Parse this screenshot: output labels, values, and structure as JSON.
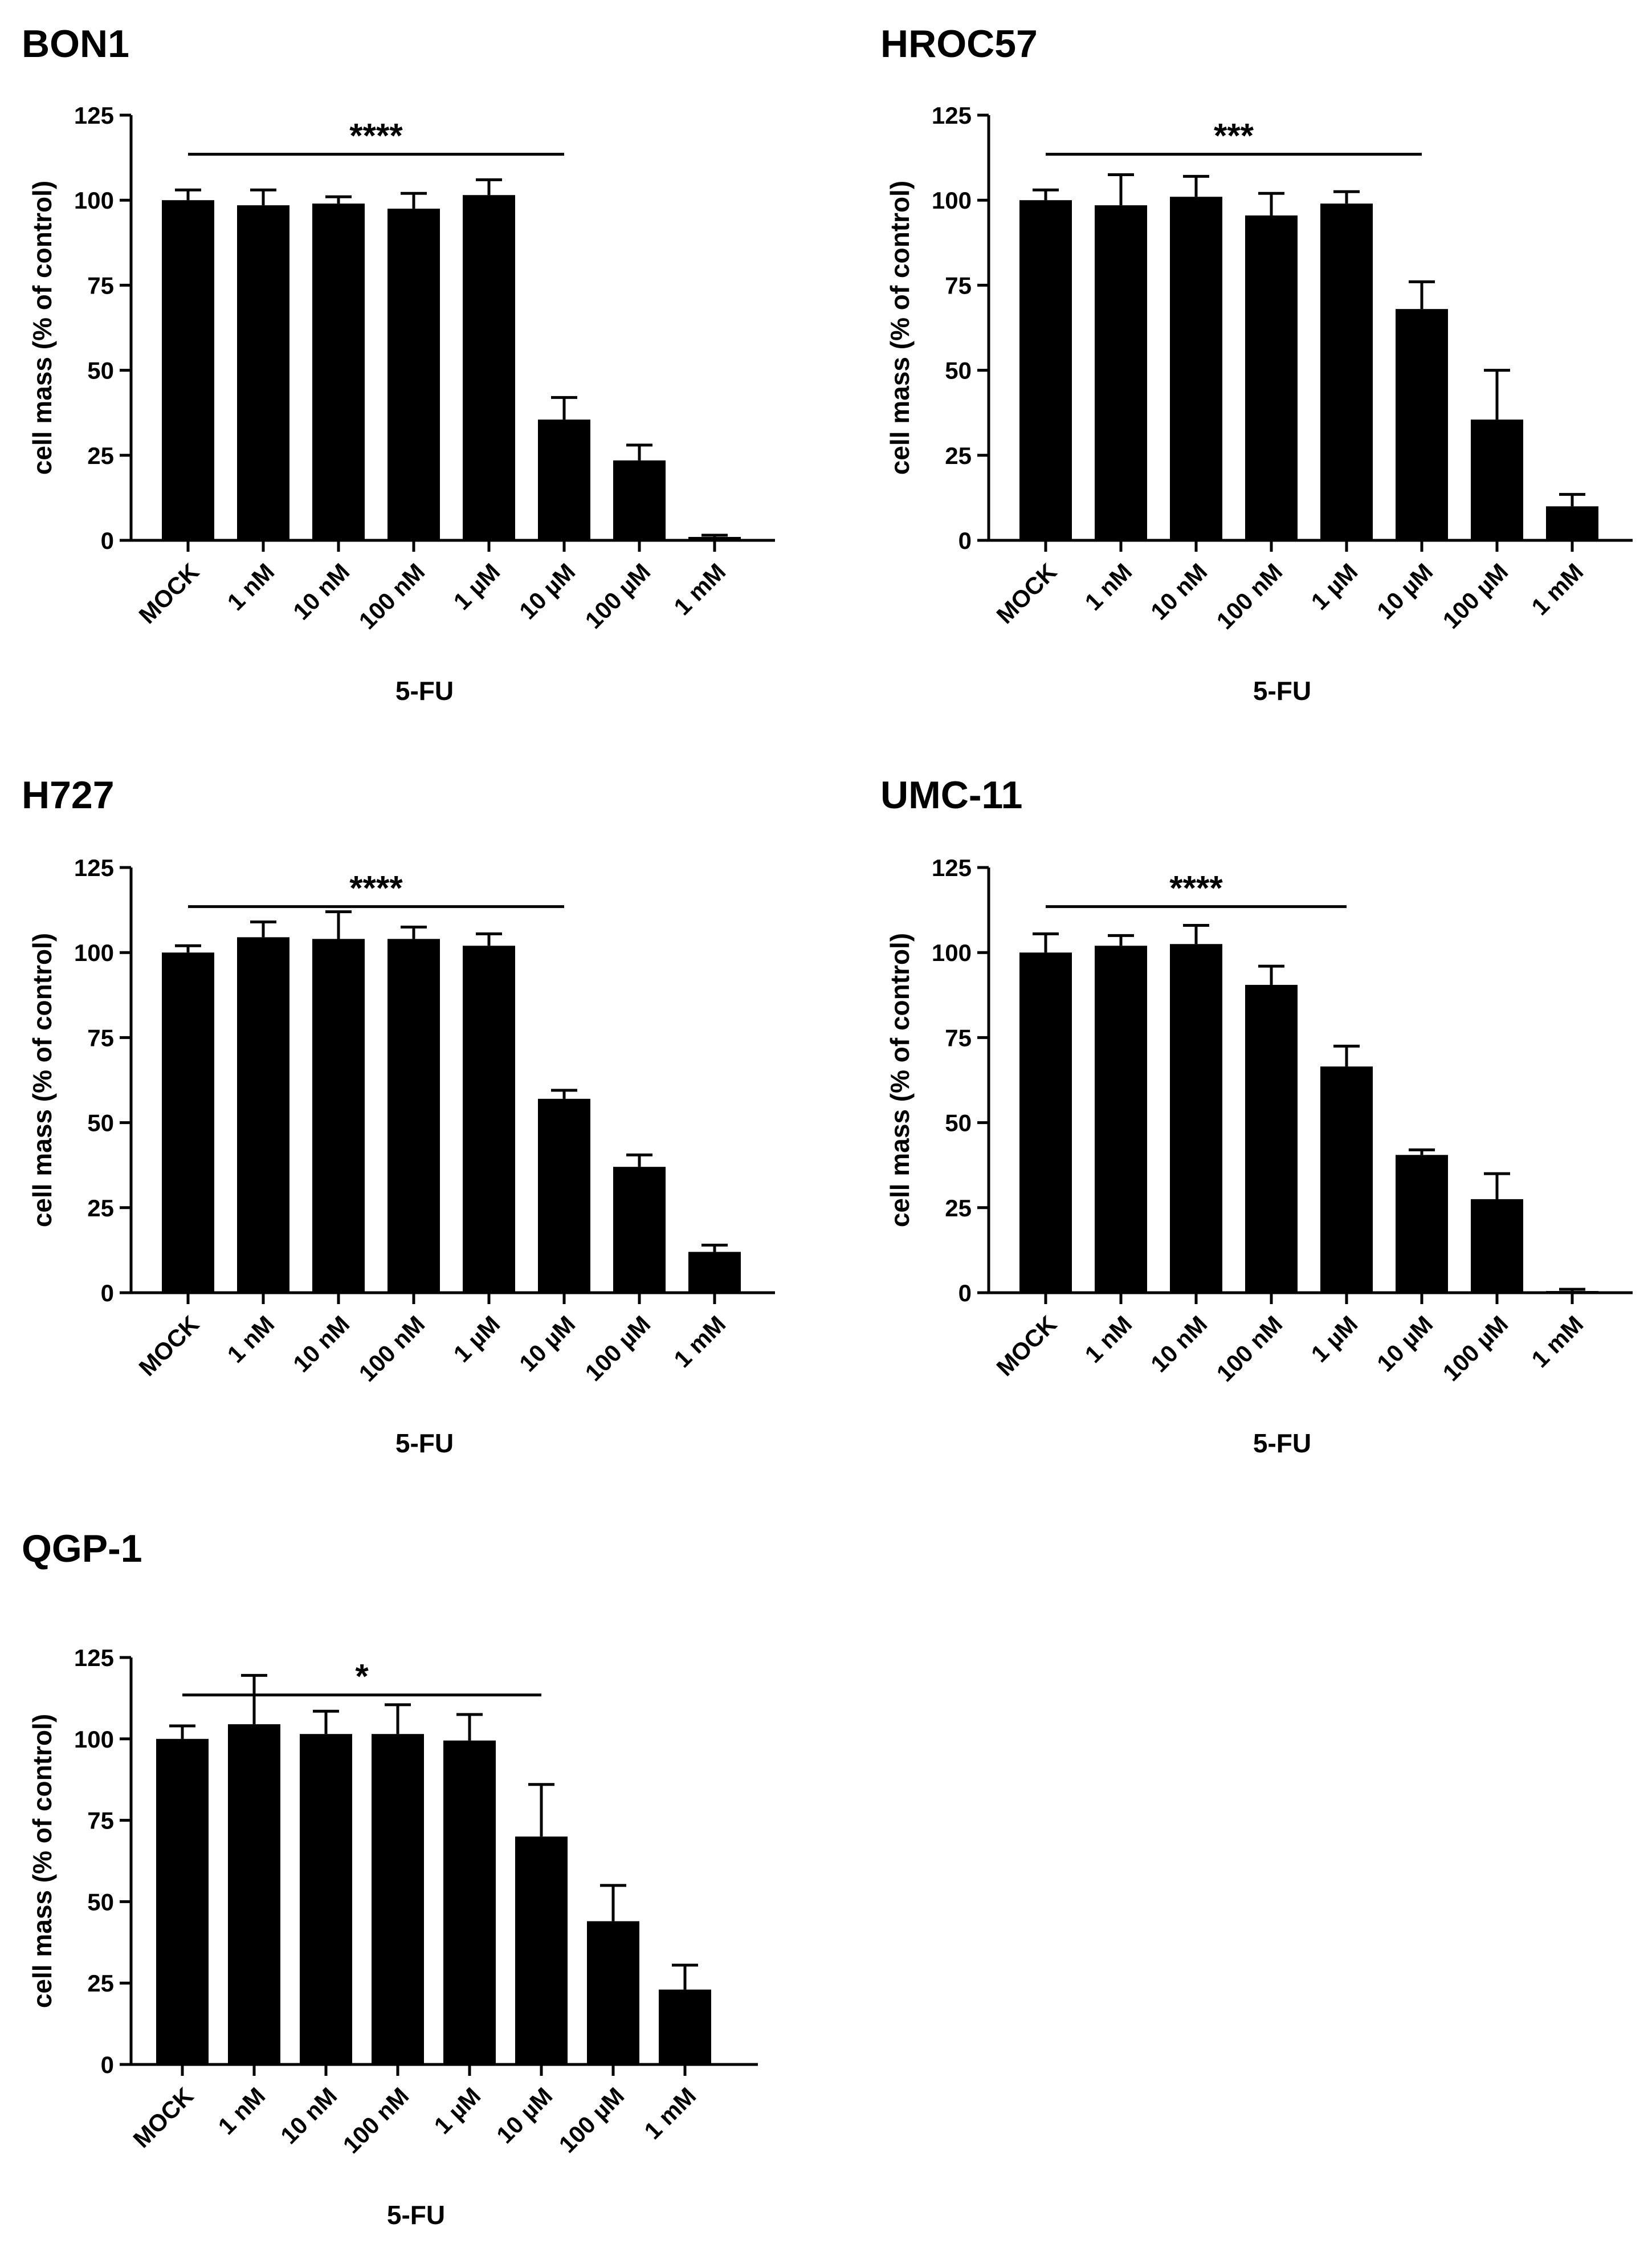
{
  "chart_data": [
    {
      "type": "bar",
      "title": "BON1",
      "xlabel": "5-FU",
      "ylabel": "cell mass (% of control)",
      "ylim": [
        0,
        125
      ],
      "yticks": [
        0,
        25,
        50,
        75,
        100,
        125
      ],
      "categories": [
        "MOCK",
        "1 nM",
        "10 nM",
        "100 nM",
        "1 µM",
        "10 µM",
        "100 µM",
        "1 mM"
      ],
      "values": [
        100,
        98.5,
        99,
        97.5,
        101.5,
        35.5,
        23.5,
        1
      ],
      "errors": [
        3,
        4.5,
        2,
        4.5,
        4.5,
        6.5,
        4.5,
        0.5
      ],
      "significance": {
        "label": "****",
        "from": "MOCK",
        "to": "10 µM"
      }
    },
    {
      "type": "bar",
      "title": "HROC57",
      "xlabel": "5-FU",
      "ylabel": "cell mass (% of control)",
      "ylim": [
        0,
        125
      ],
      "yticks": [
        0,
        25,
        50,
        75,
        100,
        125
      ],
      "categories": [
        "MOCK",
        "1 nM",
        "10 nM",
        "100 nM",
        "1 µM",
        "10 µM",
        "100 µM",
        "1 mM"
      ],
      "values": [
        100,
        98.5,
        101,
        95.5,
        99,
        68,
        35.5,
        10
      ],
      "errors": [
        3,
        9,
        6,
        6.5,
        3.5,
        8,
        14.5,
        3.5
      ],
      "significance": {
        "label": "***",
        "from": "MOCK",
        "to": "10 µM"
      }
    },
    {
      "type": "bar",
      "title": "H727",
      "xlabel": "5-FU",
      "ylabel": "cell mass (% of control)",
      "ylim": [
        0,
        125
      ],
      "yticks": [
        0,
        25,
        50,
        75,
        100,
        125
      ],
      "categories": [
        "MOCK",
        "1 nM",
        "10 nM",
        "100 nM",
        "1 µM",
        "10 µM",
        "100 µM",
        "1 mM"
      ],
      "values": [
        100,
        104.5,
        104,
        104,
        102,
        57,
        37,
        12
      ],
      "errors": [
        2,
        4.5,
        8,
        3.5,
        3.5,
        2.5,
        3.5,
        2
      ],
      "significance": {
        "label": "****",
        "from": "MOCK",
        "to": "10 µM"
      }
    },
    {
      "type": "bar",
      "title": "UMC-11",
      "xlabel": "5-FU",
      "ylabel": "cell mass (% of control)",
      "ylim": [
        0,
        125
      ],
      "yticks": [
        0,
        25,
        50,
        75,
        100,
        125
      ],
      "categories": [
        "MOCK",
        "1 nM",
        "10 nM",
        "100 nM",
        "1 µM",
        "10 µM",
        "100 µM",
        "1 mM"
      ],
      "values": [
        100,
        102,
        102.5,
        90.5,
        66.5,
        40.5,
        27.5,
        0.5
      ],
      "errors": [
        5.5,
        3,
        5.5,
        5.5,
        6,
        1.5,
        7.5,
        0.5
      ],
      "significance": {
        "label": "****",
        "from": "MOCK",
        "to": "1 µM"
      }
    },
    {
      "type": "bar",
      "title": "QGP-1",
      "xlabel": "5-FU",
      "ylabel": "cell mass (% of control)",
      "ylim": [
        0,
        125
      ],
      "yticks": [
        0,
        25,
        50,
        75,
        100,
        125
      ],
      "categories": [
        "MOCK",
        "1 nM",
        "10 nM",
        "100 nM",
        "1 µM",
        "10 µM",
        "100 µM",
        "1 mM"
      ],
      "values": [
        100,
        104.5,
        101.5,
        101.5,
        99.5,
        70,
        44,
        23
      ],
      "errors": [
        4,
        15,
        7,
        9,
        8,
        16,
        11,
        7.5
      ],
      "significance": {
        "label": "*",
        "from": "MOCK",
        "to": "10 µM"
      }
    }
  ]
}
